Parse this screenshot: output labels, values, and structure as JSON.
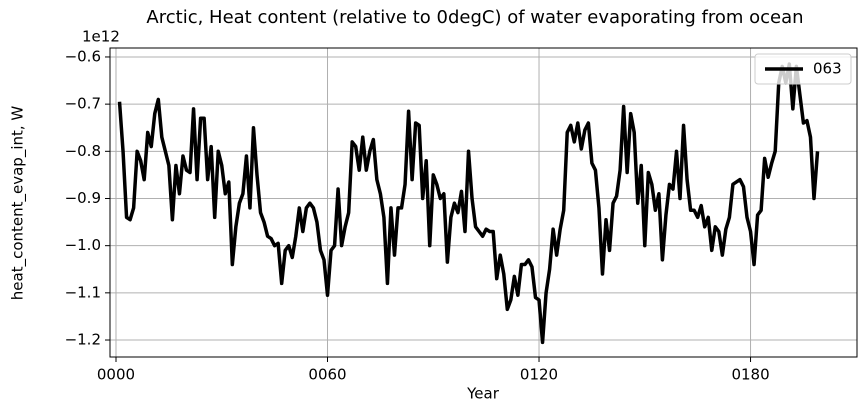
{
  "chart_data": {
    "type": "line",
    "title": "Arctic, Heat content (relative to 0degC) of water evaporating from ocean",
    "x_label": "Year",
    "y_label": "heat_content_evap_int, W",
    "y_offset_label": "1e12",
    "x": [
      1,
      2,
      3,
      4,
      5,
      6,
      7,
      8,
      9,
      10,
      11,
      12,
      13,
      14,
      15,
      16,
      17,
      18,
      19,
      20,
      21,
      22,
      23,
      24,
      25,
      26,
      27,
      28,
      29,
      30,
      31,
      32,
      33,
      34,
      35,
      36,
      37,
      38,
      39,
      40,
      41,
      42,
      43,
      44,
      45,
      46,
      47,
      48,
      49,
      50,
      51,
      52,
      53,
      54,
      55,
      56,
      57,
      58,
      59,
      60,
      61,
      62,
      63,
      64,
      65,
      66,
      67,
      68,
      69,
      70,
      71,
      72,
      73,
      74,
      75,
      76,
      77,
      78,
      79,
      80,
      81,
      82,
      83,
      84,
      85,
      86,
      87,
      88,
      89,
      90,
      91,
      92,
      93,
      94,
      95,
      96,
      97,
      98,
      99,
      100,
      101,
      102,
      103,
      104,
      105,
      106,
      107,
      108,
      109,
      110,
      111,
      112,
      113,
      114,
      115,
      116,
      117,
      118,
      119,
      120,
      121,
      122,
      123,
      124,
      125,
      126,
      127,
      128,
      129,
      130,
      131,
      132,
      133,
      134,
      135,
      136,
      137,
      138,
      139,
      140,
      141,
      142,
      143,
      144,
      145,
      146,
      147,
      148,
      149,
      150,
      151,
      152,
      153,
      154,
      155,
      156,
      157,
      158,
      159,
      160,
      161,
      162,
      163,
      164,
      165,
      166,
      167,
      168,
      169,
      170,
      171,
      172,
      173,
      174,
      175,
      176,
      177,
      178,
      179,
      180,
      181,
      182,
      183,
      184,
      185,
      186,
      187,
      188,
      189,
      190,
      191,
      192,
      193,
      194,
      195,
      196,
      197,
      198,
      199
    ],
    "series": [
      {
        "name": "063",
        "color": "#000000",
        "values": [
          -0.695,
          -0.8,
          -0.94,
          -0.945,
          -0.92,
          -0.8,
          -0.82,
          -0.86,
          -0.76,
          -0.79,
          -0.72,
          -0.69,
          -0.77,
          -0.8,
          -0.83,
          -0.945,
          -0.83,
          -0.89,
          -0.81,
          -0.84,
          -0.845,
          -0.71,
          -0.86,
          -0.73,
          -0.73,
          -0.86,
          -0.79,
          -0.94,
          -0.8,
          -0.83,
          -0.89,
          -0.865,
          -1.04,
          -0.96,
          -0.91,
          -0.89,
          -0.81,
          -0.92,
          -0.75,
          -0.85,
          -0.93,
          -0.95,
          -0.98,
          -0.985,
          -1.0,
          -0.995,
          -1.08,
          -1.01,
          -1.0,
          -1.025,
          -0.98,
          -0.92,
          -0.97,
          -0.92,
          -0.91,
          -0.92,
          -0.95,
          -1.01,
          -1.03,
          -1.105,
          -1.01,
          -1.0,
          -0.88,
          -1.0,
          -0.96,
          -0.93,
          -0.78,
          -0.79,
          -0.84,
          -0.77,
          -0.84,
          -0.8,
          -0.775,
          -0.86,
          -0.89,
          -0.94,
          -1.08,
          -0.92,
          -1.02,
          -0.92,
          -0.92,
          -0.87,
          -0.715,
          -0.86,
          -0.74,
          -0.745,
          -0.9,
          -0.82,
          -1.0,
          -0.85,
          -0.87,
          -0.9,
          -0.89,
          -1.035,
          -0.94,
          -0.91,
          -0.93,
          -0.885,
          -0.97,
          -0.8,
          -0.9,
          -0.96,
          -0.97,
          -0.98,
          -0.965,
          -0.97,
          -0.97,
          -1.07,
          -1.02,
          -1.06,
          -1.135,
          -1.115,
          -1.065,
          -1.105,
          -1.04,
          -1.04,
          -1.03,
          -1.045,
          -1.11,
          -1.115,
          -1.205,
          -1.1,
          -1.05,
          -0.965,
          -1.02,
          -0.965,
          -0.925,
          -0.76,
          -0.745,
          -0.78,
          -0.74,
          -0.795,
          -0.755,
          -0.74,
          -0.825,
          -0.84,
          -0.92,
          -1.06,
          -0.945,
          -1.01,
          -0.91,
          -0.895,
          -0.84,
          -0.705,
          -0.845,
          -0.72,
          -0.76,
          -0.91,
          -0.83,
          -1.0,
          -0.845,
          -0.87,
          -0.925,
          -0.89,
          -1.03,
          -0.935,
          -0.87,
          -0.88,
          -0.8,
          -0.9,
          -0.745,
          -0.86,
          -0.925,
          -0.925,
          -0.94,
          -0.915,
          -0.96,
          -0.94,
          -1.01,
          -0.96,
          -0.97,
          -1.02,
          -0.965,
          -0.94,
          -0.87,
          -0.865,
          -0.86,
          -0.875,
          -0.94,
          -0.97,
          -1.04,
          -0.935,
          -0.925,
          -0.815,
          -0.855,
          -0.825,
          -0.8,
          -0.655,
          -0.62,
          -0.655,
          -0.615,
          -0.71,
          -0.62,
          -0.68,
          -0.74,
          -0.735,
          -0.77,
          -0.9,
          -0.8
        ]
      }
    ],
    "xlim": [
      -1.7,
      210.2
    ],
    "ylim": [
      -1.236,
      -0.581
    ],
    "xticks": [
      {
        "value": 0,
        "label": "0000"
      },
      {
        "value": 60,
        "label": "0060"
      },
      {
        "value": 120,
        "label": "0120"
      },
      {
        "value": 180,
        "label": "0180"
      }
    ],
    "yticks": [
      {
        "value": -1.2,
        "label": "−1.2"
      },
      {
        "value": -1.1,
        "label": "−1.1"
      },
      {
        "value": -1.0,
        "label": "−1.0"
      },
      {
        "value": -0.9,
        "label": "−0.9"
      },
      {
        "value": -0.8,
        "label": "−0.8"
      },
      {
        "value": -0.7,
        "label": "−0.7"
      },
      {
        "value": -0.6,
        "label": "−0.6"
      }
    ],
    "grid": true,
    "legend": "upper right"
  }
}
